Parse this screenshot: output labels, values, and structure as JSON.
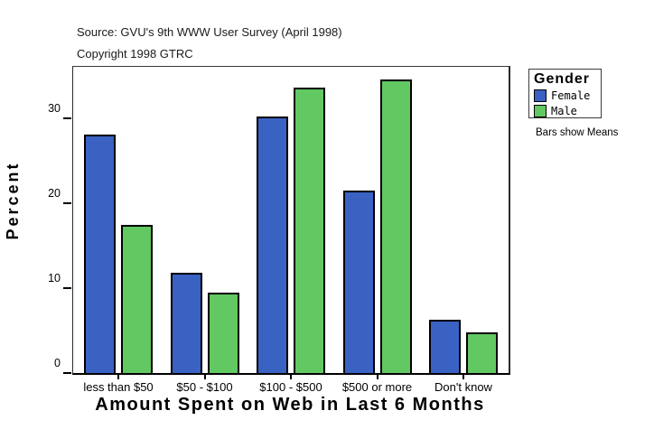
{
  "header": {
    "source": "Source: GVU's 9th WWW User Survey (April 1998)",
    "copyright": "Copyright 1998 GTRC"
  },
  "chart_data": {
    "type": "bar",
    "title": "Amount Spent on Web in Last 6 Months",
    "xlabel": "Amount Spent on Web in Last 6 Months",
    "ylabel": "Percent",
    "categories": [
      "less than $50",
      "$50 - $100",
      "$100 - $500",
      "$500 or more",
      "Don't know"
    ],
    "series": [
      {
        "name": "Female",
        "color": "#3a62c3",
        "values": [
          28.0,
          11.8,
          30.2,
          21.4,
          6.3
        ]
      },
      {
        "name": "Male",
        "color": "#62c862",
        "values": [
          17.4,
          9.4,
          33.6,
          34.5,
          4.8
        ]
      }
    ],
    "yticks": [
      0,
      10,
      20,
      30
    ],
    "ylim": [
      0,
      36
    ],
    "grid": false,
    "legend_position": "right",
    "annotation": "Bars show Means"
  },
  "legend": {
    "title": "Gender",
    "items": [
      {
        "label": "Female",
        "color": "#3a62c3"
      },
      {
        "label": "Male",
        "color": "#62c862"
      }
    ],
    "note": "Bars show Means"
  }
}
